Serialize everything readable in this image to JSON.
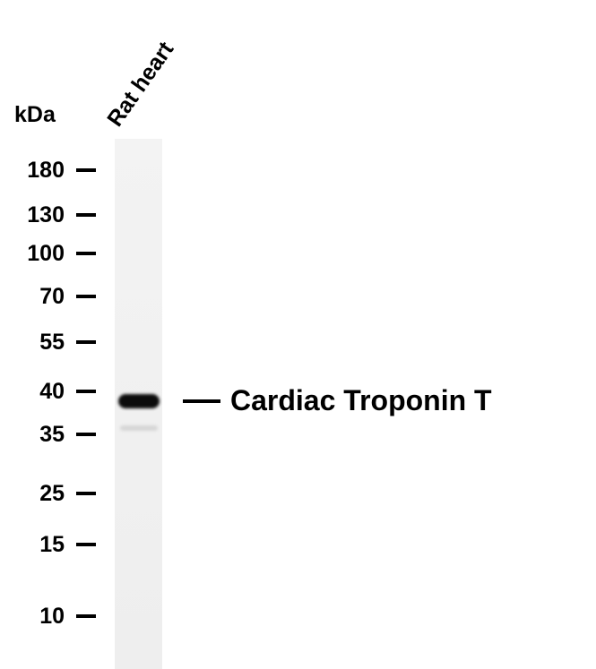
{
  "unit_label": "kDa",
  "lane_label": "Rat heart",
  "markers": [
    "180",
    "130",
    "100",
    "70",
    "55",
    "40",
    "35",
    "25",
    "15",
    "10"
  ],
  "band_annotation": "Cardiac Troponin T"
}
